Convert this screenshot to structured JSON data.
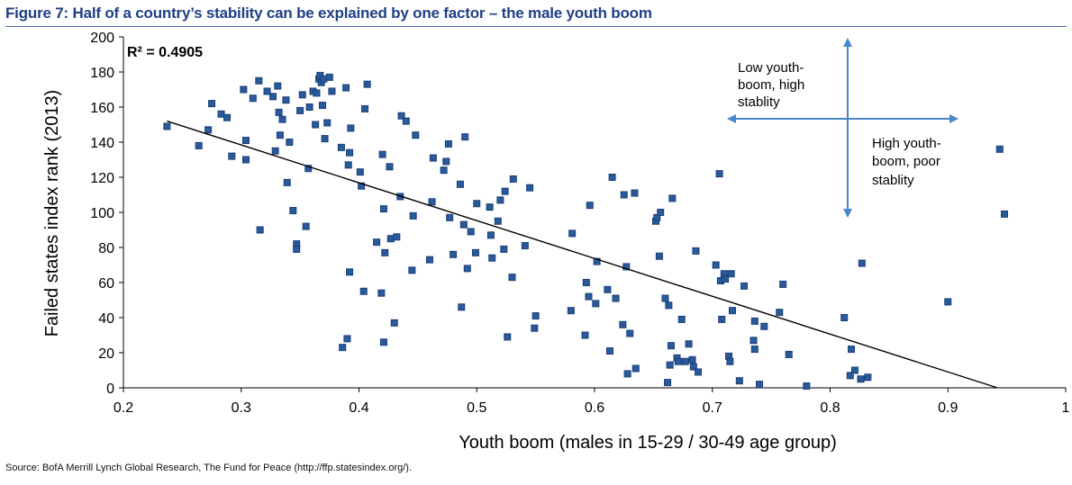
{
  "header": {
    "title": "Figure 7: Half of a country’s stability can be explained by one factor – the male youth boom"
  },
  "footer": {
    "source": "Source: BofA Merrill Lynch Global Research, The Fund for Peace (http://ffp.statesindex.org/)."
  },
  "colors": {
    "title": "#1f3f86",
    "marker": "#2b5a9b",
    "arrow": "#4a86c8",
    "trendline": "#000000"
  },
  "chart_data": {
    "type": "scatter",
    "xlabel": "Youth boom (males in 15-29 / 30-49 age group)",
    "ylabel": "Failed states index rank (2013)",
    "xlim": [
      0.2,
      1
    ],
    "ylim": [
      0,
      200
    ],
    "xticks": [
      0.2,
      0.3,
      0.4,
      0.5,
      0.6,
      0.7,
      0.8,
      0.9,
      1
    ],
    "xtick_labels": [
      "0.2",
      "0.3",
      "0.4",
      "0.5",
      "0.6",
      "0.7",
      "0.8",
      "0.9",
      "1"
    ],
    "yticks": [
      0,
      20,
      40,
      60,
      80,
      100,
      120,
      140,
      160,
      180,
      200
    ],
    "grid": false,
    "r_squared_label": "R² = 0.4905",
    "trendline": {
      "x": [
        0.237,
        0.942
      ],
      "y": [
        152,
        0
      ]
    },
    "annotations": {
      "low_boom": [
        "Low youth-",
        "boom, high",
        "stablity"
      ],
      "high_boom": [
        "High youth-",
        "boom, poor",
        "stablity"
      ]
    },
    "points": [
      [
        0.237,
        149
      ],
      [
        0.264,
        138
      ],
      [
        0.272,
        147
      ],
      [
        0.275,
        162
      ],
      [
        0.283,
        156
      ],
      [
        0.288,
        154
      ],
      [
        0.292,
        132
      ],
      [
        0.302,
        170
      ],
      [
        0.304,
        141
      ],
      [
        0.304,
        130
      ],
      [
        0.316,
        90
      ],
      [
        0.31,
        165
      ],
      [
        0.315,
        175
      ],
      [
        0.322,
        169
      ],
      [
        0.327,
        166
      ],
      [
        0.329,
        135
      ],
      [
        0.331,
        172
      ],
      [
        0.332,
        157
      ],
      [
        0.333,
        144
      ],
      [
        0.335,
        153
      ],
      [
        0.338,
        164
      ],
      [
        0.339,
        117
      ],
      [
        0.341,
        140
      ],
      [
        0.344,
        101
      ],
      [
        0.347,
        82
      ],
      [
        0.347,
        79
      ],
      [
        0.35,
        158
      ],
      [
        0.352,
        167
      ],
      [
        0.355,
        92
      ],
      [
        0.357,
        125
      ],
      [
        0.358,
        160
      ],
      [
        0.361,
        169
      ],
      [
        0.363,
        150
      ],
      [
        0.364,
        168
      ],
      [
        0.366,
        176
      ],
      [
        0.367,
        178
      ],
      [
        0.368,
        174
      ],
      [
        0.369,
        161
      ],
      [
        0.37,
        176
      ],
      [
        0.371,
        142
      ],
      [
        0.373,
        151
      ],
      [
        0.375,
        177
      ],
      [
        0.377,
        169
      ],
      [
        0.385,
        137
      ],
      [
        0.386,
        23
      ],
      [
        0.389,
        171
      ],
      [
        0.39,
        28
      ],
      [
        0.391,
        127
      ],
      [
        0.392,
        134
      ],
      [
        0.392,
        66
      ],
      [
        0.393,
        148
      ],
      [
        0.401,
        123
      ],
      [
        0.402,
        115
      ],
      [
        0.404,
        55
      ],
      [
        0.405,
        159
      ],
      [
        0.407,
        173
      ],
      [
        0.415,
        83
      ],
      [
        0.419,
        54
      ],
      [
        0.42,
        133
      ],
      [
        0.421,
        102
      ],
      [
        0.421,
        26
      ],
      [
        0.422,
        77
      ],
      [
        0.426,
        126
      ],
      [
        0.427,
        85
      ],
      [
        0.43,
        37
      ],
      [
        0.432,
        86
      ],
      [
        0.435,
        109
      ],
      [
        0.436,
        155
      ],
      [
        0.44,
        152
      ],
      [
        0.445,
        67
      ],
      [
        0.446,
        98
      ],
      [
        0.448,
        144
      ],
      [
        0.46,
        73
      ],
      [
        0.462,
        106
      ],
      [
        0.463,
        131
      ],
      [
        0.472,
        124
      ],
      [
        0.474,
        129
      ],
      [
        0.476,
        139
      ],
      [
        0.477,
        97
      ],
      [
        0.48,
        76
      ],
      [
        0.486,
        116
      ],
      [
        0.487,
        46
      ],
      [
        0.489,
        93
      ],
      [
        0.49,
        143
      ],
      [
        0.492,
        68
      ],
      [
        0.495,
        89
      ],
      [
        0.499,
        77
      ],
      [
        0.5,
        105
      ],
      [
        0.511,
        103
      ],
      [
        0.512,
        87
      ],
      [
        0.513,
        74
      ],
      [
        0.518,
        95
      ],
      [
        0.52,
        107
      ],
      [
        0.523,
        79
      ],
      [
        0.524,
        112
      ],
      [
        0.526,
        29
      ],
      [
        0.53,
        63
      ],
      [
        0.531,
        119
      ],
      [
        0.541,
        81
      ],
      [
        0.545,
        114
      ],
      [
        0.549,
        34
      ],
      [
        0.55,
        41
      ],
      [
        0.58,
        44
      ],
      [
        0.581,
        88
      ],
      [
        0.592,
        30
      ],
      [
        0.593,
        60
      ],
      [
        0.595,
        52
      ],
      [
        0.596,
        104
      ],
      [
        0.601,
        48
      ],
      [
        0.602,
        72
      ],
      [
        0.611,
        56
      ],
      [
        0.613,
        21
      ],
      [
        0.615,
        120
      ],
      [
        0.618,
        51
      ],
      [
        0.624,
        36
      ],
      [
        0.625,
        110
      ],
      [
        0.627,
        69
      ],
      [
        0.628,
        8
      ],
      [
        0.63,
        31
      ],
      [
        0.634,
        111
      ],
      [
        0.635,
        11
      ],
      [
        0.652,
        95
      ],
      [
        0.653,
        97
      ],
      [
        0.655,
        75
      ],
      [
        0.656,
        100
      ],
      [
        0.66,
        51
      ],
      [
        0.662,
        3
      ],
      [
        0.663,
        47
      ],
      [
        0.664,
        13
      ],
      [
        0.665,
        24
      ],
      [
        0.666,
        108
      ],
      [
        0.67,
        17
      ],
      [
        0.671,
        15
      ],
      [
        0.674,
        39
      ],
      [
        0.677,
        15
      ],
      [
        0.68,
        25
      ],
      [
        0.683,
        16
      ],
      [
        0.684,
        12
      ],
      [
        0.686,
        78
      ],
      [
        0.688,
        9
      ],
      [
        0.703,
        70
      ],
      [
        0.706,
        122
      ],
      [
        0.707,
        61
      ],
      [
        0.708,
        39
      ],
      [
        0.71,
        65
      ],
      [
        0.711,
        62
      ],
      [
        0.714,
        18
      ],
      [
        0.715,
        15
      ],
      [
        0.716,
        65
      ],
      [
        0.717,
        44
      ],
      [
        0.723,
        4
      ],
      [
        0.727,
        58
      ],
      [
        0.735,
        27
      ],
      [
        0.736,
        22
      ],
      [
        0.736,
        38
      ],
      [
        0.74,
        2
      ],
      [
        0.744,
        35
      ],
      [
        0.757,
        43
      ],
      [
        0.76,
        59
      ],
      [
        0.765,
        19
      ],
      [
        0.78,
        1
      ],
      [
        0.812,
        40
      ],
      [
        0.817,
        7
      ],
      [
        0.818,
        22
      ],
      [
        0.821,
        10
      ],
      [
        0.826,
        5
      ],
      [
        0.827,
        71
      ],
      [
        0.832,
        6
      ],
      [
        0.9,
        49
      ],
      [
        0.944,
        136
      ],
      [
        0.948,
        99
      ]
    ]
  }
}
